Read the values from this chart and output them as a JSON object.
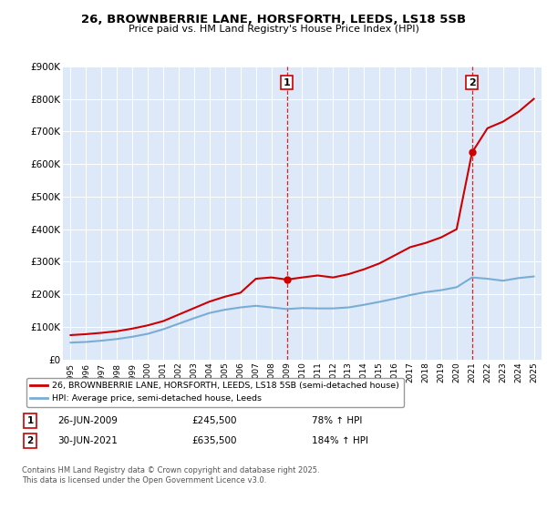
{
  "title_line1": "26, BROWNBERRIE LANE, HORSFORTH, LEEDS, LS18 5SB",
  "title_line2": "Price paid vs. HM Land Registry's House Price Index (HPI)",
  "background_color": "#ffffff",
  "plot_bg_color": "#dde8f8",
  "grid_color": "#ffffff",
  "red_color": "#cc0000",
  "blue_color": "#7aadd4",
  "marker1_label": "26-JUN-2009",
  "marker1_price": "£245,500",
  "marker1_pct": "78% ↑ HPI",
  "marker2_label": "30-JUN-2021",
  "marker2_price": "£635,500",
  "marker2_pct": "184% ↑ HPI",
  "legend_label1": "26, BROWNBERRIE LANE, HORSFORTH, LEEDS, LS18 5SB (semi-detached house)",
  "legend_label2": "HPI: Average price, semi-detached house, Leeds",
  "footer": "Contains HM Land Registry data © Crown copyright and database right 2025.\nThis data is licensed under the Open Government Licence v3.0.",
  "years": [
    1995,
    1996,
    1997,
    1998,
    1999,
    2000,
    2001,
    2002,
    2003,
    2004,
    2005,
    2006,
    2007,
    2008,
    2009,
    2010,
    2011,
    2012,
    2013,
    2014,
    2015,
    2016,
    2017,
    2018,
    2019,
    2020,
    2021,
    2022,
    2023,
    2024,
    2025
  ],
  "hpi_values": [
    52000,
    54000,
    58000,
    63000,
    70000,
    79000,
    93000,
    110000,
    127000,
    143000,
    153000,
    160000,
    165000,
    160000,
    155000,
    158000,
    157000,
    157000,
    160000,
    168000,
    177000,
    187000,
    198000,
    207000,
    213000,
    222000,
    252000,
    248000,
    242000,
    250000,
    255000
  ],
  "price_values_x": [
    1995,
    1996,
    1997,
    1998,
    1999,
    2000,
    2001,
    2002,
    2003,
    2004,
    2005,
    2006,
    2007,
    2008,
    2009,
    2010,
    2011,
    2012,
    2013,
    2014,
    2015,
    2016,
    2017,
    2018,
    2019,
    2020,
    2021,
    2022,
    2023,
    2024,
    2025
  ],
  "price_values_y": [
    75000,
    78000,
    82000,
    87000,
    95000,
    105000,
    118000,
    138000,
    158000,
    178000,
    193000,
    205000,
    248000,
    252000,
    245500,
    252000,
    258000,
    252000,
    262000,
    277000,
    295000,
    320000,
    345000,
    358000,
    375000,
    400000,
    635500,
    710000,
    730000,
    760000,
    800000
  ],
  "ylim_max": 900000,
  "ytick_values": [
    0,
    100000,
    200000,
    300000,
    400000,
    500000,
    600000,
    700000,
    800000,
    900000
  ],
  "ytick_labels": [
    "£0",
    "£100K",
    "£200K",
    "£300K",
    "£400K",
    "£500K",
    "£600K",
    "£700K",
    "£800K",
    "£900K"
  ]
}
